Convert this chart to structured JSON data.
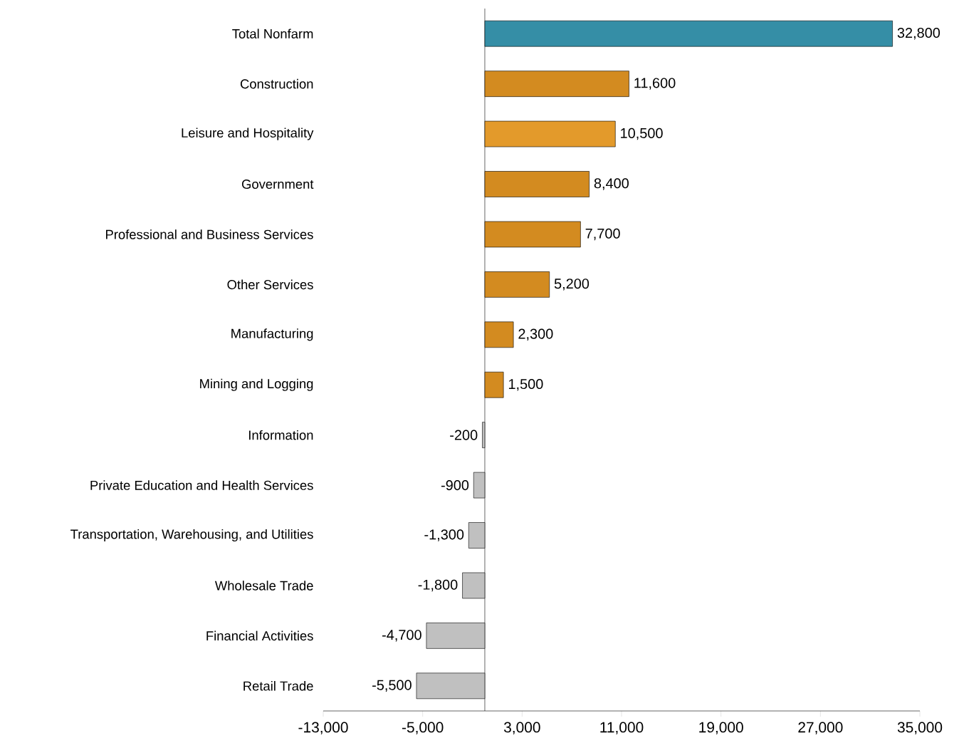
{
  "chart_data": {
    "type": "bar",
    "orientation": "horizontal",
    "categories": [
      "Total Nonfarm",
      "Construction",
      "Leisure and Hospitality",
      "Government",
      "Professional and Business Services",
      "Other Services",
      "Manufacturing",
      "Mining and Logging",
      "Information",
      "Private Education and Health Services",
      "Transportation, Warehousing, and Utilities",
      "Wholesale Trade",
      "Financial Activities",
      "Retail Trade"
    ],
    "values": [
      32800,
      11600,
      10500,
      8400,
      7700,
      5200,
      2300,
      1500,
      -200,
      -900,
      -1300,
      -1800,
      -4700,
      -5500
    ],
    "colors": [
      "#358ea6",
      "#d38b20",
      "#e39a2b",
      "#d38b20",
      "#d38b20",
      "#d38b20",
      "#d38b20",
      "#d38b20",
      "#c0c0c0",
      "#c0c0c0",
      "#c0c0c0",
      "#c0c0c0",
      "#c0c0c0",
      "#c0c0c0"
    ],
    "value_labels": [
      "32,800",
      "11,600",
      "10,500",
      "8,400",
      "7,700",
      "5,200",
      "2,300",
      "1,500",
      "-200",
      "-900",
      "-1,300",
      "-1,800",
      "-4,700",
      "-5,500"
    ],
    "xlim": [
      -13000,
      35000
    ],
    "xticks": [
      {
        "value": -13000,
        "label": "-13,000"
      },
      {
        "value": -5000,
        "label": "-5,000"
      },
      {
        "value": 3000,
        "label": "3,000"
      },
      {
        "value": 11000,
        "label": "11,000"
      },
      {
        "value": 19000,
        "label": "19,000"
      },
      {
        "value": 27000,
        "label": "27,000"
      },
      {
        "value": 35000,
        "label": "35,000"
      }
    ]
  }
}
